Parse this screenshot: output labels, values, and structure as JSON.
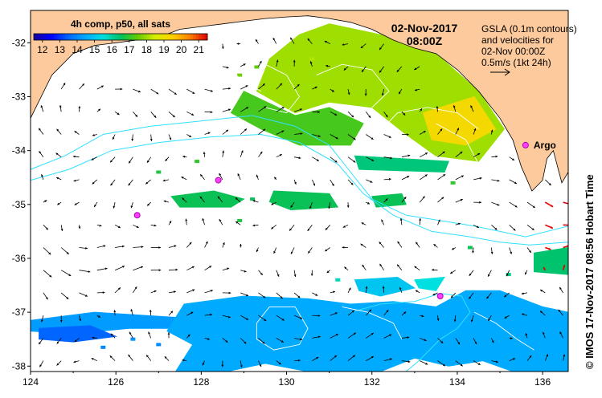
{
  "title": {
    "date": "02-Nov-2017",
    "time": "08:00Z"
  },
  "colorbar": {
    "title": "4h comp, p50, all sats",
    "ticks": [
      "12",
      "13",
      "14",
      "15",
      "16",
      "17",
      "18",
      "19",
      "20",
      "21"
    ],
    "min": 11.5,
    "max": 21.5,
    "colors": [
      "#1a0099",
      "#0000ff",
      "#0066ff",
      "#00aaff",
      "#00e0e0",
      "#00c060",
      "#66cc00",
      "#d6ef00",
      "#ffd000",
      "#ff8000",
      "#dd0000"
    ]
  },
  "legend": {
    "lines": [
      "GSLA (0.1m contours)",
      "and velocities for",
      "02-Nov 00:00Z",
      "0.5m/s (1kt 24h)"
    ],
    "arrow_icon": "right-arrow-icon"
  },
  "credit": "© IMOS 17-Nov-2017 08:56 Hobart Time",
  "float_label": "Argo",
  "chart_data": {
    "type": "map",
    "x_label": "",
    "y_label": "",
    "xlim": [
      124,
      136.6
    ],
    "ylim": [
      -38.1,
      -31.4
    ],
    "x_ticks": [
      124,
      126,
      128,
      130,
      132,
      134,
      136
    ],
    "y_ticks": [
      -32,
      -33,
      -34,
      -35,
      -36,
      -37,
      -38
    ],
    "land_color": "#fcca9c",
    "grid": false,
    "argo_floats": [
      {
        "lon": 126.5,
        "lat": -35.2
      },
      {
        "lon": 128.4,
        "lat": -34.55
      },
      {
        "lon": 133.6,
        "lat": -36.7
      },
      {
        "lon": 135.6,
        "lat": -33.9,
        "label": "Argo"
      }
    ],
    "coastline": [
      [
        124.0,
        -31.4
      ],
      [
        124.0,
        -33.4
      ],
      [
        124.5,
        -32.6
      ],
      [
        125.0,
        -32.2
      ],
      [
        125.5,
        -32.05
      ],
      [
        126.0,
        -32.0
      ],
      [
        126.5,
        -31.95
      ],
      [
        127.0,
        -31.9
      ],
      [
        127.5,
        -31.75
      ],
      [
        128.0,
        -31.7
      ],
      [
        128.5,
        -31.65
      ],
      [
        129.0,
        -31.6
      ],
      [
        129.5,
        -31.55
      ],
      [
        130.0,
        -31.52
      ],
      [
        130.5,
        -31.5
      ],
      [
        131.0,
        -31.55
      ],
      [
        131.5,
        -31.62
      ],
      [
        132.0,
        -31.75
      ],
      [
        132.5,
        -31.95
      ],
      [
        133.0,
        -32.1
      ],
      [
        133.5,
        -32.2
      ],
      [
        134.0,
        -32.5
      ],
      [
        134.5,
        -32.9
      ],
      [
        135.0,
        -33.4
      ],
      [
        135.3,
        -33.8
      ],
      [
        135.5,
        -34.3
      ],
      [
        135.75,
        -34.75
      ],
      [
        136.0,
        -34.55
      ],
      [
        136.1,
        -34.15
      ],
      [
        136.25,
        -34.0
      ],
      [
        136.35,
        -34.3
      ],
      [
        136.45,
        -34.6
      ],
      [
        136.6,
        -34.4
      ],
      [
        136.6,
        -31.4
      ]
    ],
    "sst_patches": [
      {
        "value": 18.0,
        "points": [
          [
            131.0,
            -31.65
          ],
          [
            132.5,
            -31.9
          ],
          [
            133.5,
            -32.2
          ],
          [
            134.5,
            -32.9
          ],
          [
            135.1,
            -33.6
          ],
          [
            134.5,
            -34.2
          ],
          [
            133.5,
            -34.1
          ],
          [
            132.8,
            -33.7
          ],
          [
            132.0,
            -33.2
          ],
          [
            131.0,
            -33.1
          ],
          [
            130.2,
            -33.3
          ],
          [
            129.3,
            -32.9
          ],
          [
            129.6,
            -32.3
          ],
          [
            130.3,
            -31.85
          ]
        ]
      },
      {
        "value": 17.2,
        "points": [
          [
            129.0,
            -32.9
          ],
          [
            130.2,
            -33.35
          ],
          [
            131.0,
            -33.2
          ],
          [
            131.8,
            -33.5
          ],
          [
            131.5,
            -33.9
          ],
          [
            130.3,
            -33.9
          ],
          [
            129.4,
            -33.6
          ],
          [
            128.7,
            -33.3
          ]
        ]
      },
      {
        "value": 19.2,
        "points": [
          [
            133.2,
            -33.3
          ],
          [
            134.4,
            -33.0
          ],
          [
            134.9,
            -33.6
          ],
          [
            134.2,
            -33.9
          ],
          [
            133.4,
            -33.8
          ]
        ]
      },
      {
        "value": 16.6,
        "points": [
          [
            127.3,
            -34.85
          ],
          [
            128.3,
            -34.75
          ],
          [
            129.0,
            -34.9
          ],
          [
            128.7,
            -35.05
          ],
          [
            127.5,
            -35.05
          ]
        ]
      },
      {
        "value": 16.6,
        "points": [
          [
            129.7,
            -34.75
          ],
          [
            131.0,
            -34.8
          ],
          [
            131.2,
            -35.05
          ],
          [
            130.1,
            -35.1
          ],
          [
            129.6,
            -34.95
          ]
        ]
      },
      {
        "value": 16.6,
        "points": [
          [
            132.0,
            -34.85
          ],
          [
            132.7,
            -34.8
          ],
          [
            132.8,
            -35.0
          ],
          [
            132.1,
            -35.05
          ]
        ]
      },
      {
        "value": 16.3,
        "points": [
          [
            131.6,
            -34.1
          ],
          [
            133.8,
            -34.2
          ],
          [
            133.7,
            -34.4
          ],
          [
            131.7,
            -34.35
          ]
        ]
      },
      {
        "value": 16.4,
        "points": [
          [
            135.8,
            -35.9
          ],
          [
            136.6,
            -35.8
          ],
          [
            136.6,
            -36.3
          ],
          [
            135.8,
            -36.25
          ]
        ]
      },
      {
        "value": 15.0,
        "points": [
          [
            131.6,
            -36.4
          ],
          [
            132.6,
            -36.35
          ],
          [
            133.0,
            -36.55
          ],
          [
            132.2,
            -36.7
          ],
          [
            131.7,
            -36.6
          ]
        ]
      },
      {
        "value": 15.5,
        "points": [
          [
            133.0,
            -36.4
          ],
          [
            133.7,
            -36.35
          ],
          [
            133.5,
            -36.6
          ],
          [
            133.1,
            -36.55
          ]
        ]
      },
      {
        "value": 14.3,
        "points": [
          [
            124.0,
            -37.15
          ],
          [
            125.5,
            -37.0
          ],
          [
            126.5,
            -37.05
          ],
          [
            127.5,
            -37.1
          ],
          [
            127.4,
            -37.3
          ],
          [
            126.3,
            -37.3
          ],
          [
            125.0,
            -37.4
          ],
          [
            124.0,
            -37.35
          ]
        ]
      },
      {
        "value": 14.5,
        "points": [
          [
            127.6,
            -36.85
          ],
          [
            129.0,
            -36.7
          ],
          [
            130.5,
            -36.75
          ],
          [
            131.5,
            -36.85
          ],
          [
            132.5,
            -36.8
          ],
          [
            133.5,
            -36.9
          ],
          [
            134.2,
            -36.6
          ],
          [
            135.0,
            -36.6
          ],
          [
            136.0,
            -36.9
          ],
          [
            136.6,
            -37.0
          ],
          [
            136.6,
            -38.1
          ],
          [
            135.3,
            -38.1
          ],
          [
            134.6,
            -37.9
          ],
          [
            133.8,
            -38.0
          ],
          [
            133.0,
            -37.85
          ],
          [
            132.2,
            -38.1
          ],
          [
            130.5,
            -38.1
          ],
          [
            129.5,
            -37.95
          ],
          [
            128.6,
            -38.1
          ],
          [
            127.4,
            -38.1
          ],
          [
            127.8,
            -37.6
          ],
          [
            127.2,
            -37.35
          ]
        ]
      },
      {
        "value": 13.5,
        "points": [
          [
            124.2,
            -37.3
          ],
          [
            125.4,
            -37.25
          ],
          [
            126.0,
            -37.45
          ],
          [
            125.0,
            -37.55
          ],
          [
            124.2,
            -37.5
          ]
        ]
      }
    ],
    "sst_specks": [
      {
        "value": 17.6,
        "lon": 128.9,
        "lat": -32.6
      },
      {
        "value": 17.4,
        "lon": 129.3,
        "lat": -32.45
      },
      {
        "value": 18.2,
        "lon": 130.6,
        "lat": -32.3
      },
      {
        "value": 17.0,
        "lon": 127.9,
        "lat": -34.2
      },
      {
        "value": 16.8,
        "lon": 127.0,
        "lat": -34.4
      },
      {
        "value": 16.8,
        "lon": 128.9,
        "lat": -35.3
      },
      {
        "value": 16.6,
        "lon": 129.2,
        "lat": -34.9
      },
      {
        "value": 17.0,
        "lon": 133.9,
        "lat": -34.6
      },
      {
        "value": 16.6,
        "lon": 134.3,
        "lat": -35.8
      },
      {
        "value": 16.2,
        "lon": 135.2,
        "lat": -36.3
      },
      {
        "value": 15.8,
        "lon": 131.2,
        "lat": -36.4
      },
      {
        "value": 14.0,
        "lon": 127.0,
        "lat": -37.6
      },
      {
        "value": 14.2,
        "lon": 126.4,
        "lat": -37.5
      },
      {
        "value": 14.0,
        "lon": 125.7,
        "lat": -37.65
      }
    ],
    "fronts": [
      [
        [
          124.0,
          -34.35
        ],
        [
          124.8,
          -34.1
        ],
        [
          125.7,
          -33.7
        ],
        [
          126.8,
          -33.55
        ],
        [
          128.0,
          -33.45
        ],
        [
          129.2,
          -33.35
        ],
        [
          130.2,
          -33.55
        ],
        [
          131.0,
          -33.9
        ],
        [
          131.5,
          -34.4
        ],
        [
          132.0,
          -34.9
        ],
        [
          132.8,
          -35.2
        ],
        [
          133.6,
          -35.3
        ],
        [
          134.4,
          -35.4
        ],
        [
          135.0,
          -35.5
        ],
        [
          135.6,
          -35.6
        ],
        [
          136.6,
          -35.4
        ]
      ],
      [
        [
          124.0,
          -34.55
        ],
        [
          124.9,
          -34.35
        ],
        [
          125.9,
          -34.0
        ],
        [
          127.0,
          -33.85
        ],
        [
          128.2,
          -33.75
        ],
        [
          129.4,
          -33.7
        ],
        [
          130.3,
          -33.85
        ],
        [
          131.2,
          -34.25
        ],
        [
          131.8,
          -34.8
        ],
        [
          132.5,
          -35.2
        ],
        [
          133.4,
          -35.5
        ],
        [
          134.3,
          -35.6
        ],
        [
          135.0,
          -35.7
        ],
        [
          135.7,
          -35.75
        ],
        [
          136.6,
          -35.7
        ]
      ],
      [
        [
          131.5,
          -37.0
        ],
        [
          132.2,
          -36.85
        ],
        [
          133.0,
          -36.8
        ],
        [
          133.6,
          -36.65
        ],
        [
          134.1,
          -36.7
        ],
        [
          134.3,
          -37.0
        ],
        [
          134.0,
          -37.3
        ],
        [
          133.6,
          -37.5
        ],
        [
          133.1,
          -37.9
        ],
        [
          132.8,
          -38.1
        ]
      ]
    ],
    "contours": [
      [
        [
          127.8,
          -32.2
        ],
        [
          128.4,
          -32.4
        ],
        [
          129.0,
          -32.7
        ],
        [
          129.4,
          -32.9
        ]
      ],
      [
        [
          129.5,
          -32.4
        ],
        [
          130.0,
          -32.6
        ],
        [
          130.3,
          -33.0
        ],
        [
          130.0,
          -33.3
        ],
        [
          129.5,
          -33.2
        ]
      ],
      [
        [
          130.7,
          -32.6
        ],
        [
          131.3,
          -32.4
        ],
        [
          132.0,
          -32.5
        ],
        [
          132.4,
          -32.9
        ],
        [
          132.0,
          -33.2
        ]
      ],
      [
        [
          132.0,
          -33.8
        ],
        [
          132.6,
          -33.3
        ],
        [
          133.3,
          -33.2
        ],
        [
          134.0,
          -33.3
        ],
        [
          134.5,
          -33.6
        ]
      ],
      [
        [
          133.5,
          -33.5
        ],
        [
          134.2,
          -33.8
        ],
        [
          134.6,
          -34.4
        ],
        [
          134.9,
          -35.0
        ],
        [
          135.0,
          -35.4
        ]
      ],
      [
        [
          129.3,
          -37.2
        ],
        [
          129.6,
          -36.9
        ],
        [
          130.2,
          -36.9
        ],
        [
          130.5,
          -37.3
        ],
        [
          130.3,
          -37.6
        ],
        [
          129.7,
          -37.7
        ],
        [
          129.3,
          -37.5
        ],
        [
          129.3,
          -37.2
        ]
      ],
      [
        [
          131.3,
          -36.9
        ],
        [
          131.9,
          -37.0
        ],
        [
          132.5,
          -37.2
        ],
        [
          132.7,
          -37.5
        ]
      ],
      [
        [
          134.4,
          -37.0
        ],
        [
          134.9,
          -37.2
        ],
        [
          135.4,
          -37.5
        ],
        [
          135.8,
          -37.7
        ]
      ]
    ]
  }
}
